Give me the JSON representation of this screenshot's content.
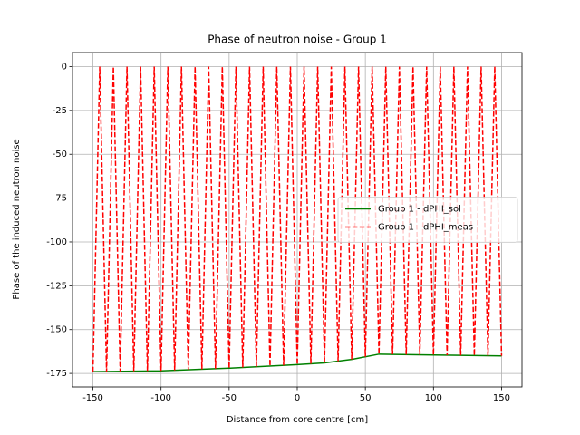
{
  "chart_data": {
    "type": "line",
    "title": "Phase of neutron noise - Group 1",
    "x_label": "Distance from core centre [cm]",
    "y_label": "Phase of the induced neutron noise",
    "xlim": [
      -165,
      165
    ],
    "ylim": [
      -182.7,
      8.0
    ],
    "xticks": [
      -150,
      -100,
      -50,
      0,
      50,
      100,
      150
    ],
    "yticks": [
      0,
      -25,
      -50,
      -75,
      -100,
      -125,
      -150,
      -175
    ],
    "grid": true,
    "legend_loc": "center right",
    "series": [
      {
        "name": "Group 1 - dPHI_sol",
        "color": "#008000",
        "linestyle": "solid",
        "x": [
          -150,
          -100,
          -50,
          0,
          20,
          40,
          60,
          100,
          150
        ],
        "values": [
          -174,
          -173.5,
          -172,
          -170,
          -169,
          -167,
          -164,
          -164.5,
          -165
        ]
      },
      {
        "name": "Group 1 - dPHI_meas",
        "color": "#ff0000",
        "linestyle": "dashed",
        "x": [
          -150,
          -145,
          -140,
          -135,
          -130,
          -125,
          -120,
          -115,
          -110,
          -105,
          -100,
          -95,
          -90,
          -85,
          -80,
          -75,
          -70,
          -65,
          -60,
          -55,
          -50,
          -45,
          -40,
          -35,
          -30,
          -25,
          -20,
          -15,
          -10,
          -5,
          0,
          5,
          10,
          15,
          20,
          25,
          30,
          35,
          40,
          45,
          50,
          55,
          60,
          65,
          70,
          75,
          80,
          85,
          90,
          95,
          100,
          105,
          110,
          115,
          120,
          125,
          130,
          135,
          140,
          145,
          150
        ],
        "values": [
          -174,
          0,
          -173.9,
          0,
          -173.8,
          0,
          -173.7,
          0,
          -173.6,
          0,
          -173.5,
          0,
          -173.2,
          0,
          -172.9,
          0,
          -172.6,
          0,
          -172.3,
          0,
          -172,
          0,
          -171.6,
          0,
          -171.2,
          0,
          -170.8,
          0,
          -170.4,
          0,
          -170,
          0,
          -169.5,
          0,
          -169,
          0,
          -168,
          0,
          -167,
          0,
          -165.5,
          0,
          -164,
          0,
          -164.1,
          0,
          -164.3,
          0,
          -164.4,
          0,
          -164.5,
          0,
          -164.6,
          0,
          -164.7,
          0,
          -164.8,
          0,
          -164.9,
          0,
          -165
        ]
      }
    ]
  }
}
